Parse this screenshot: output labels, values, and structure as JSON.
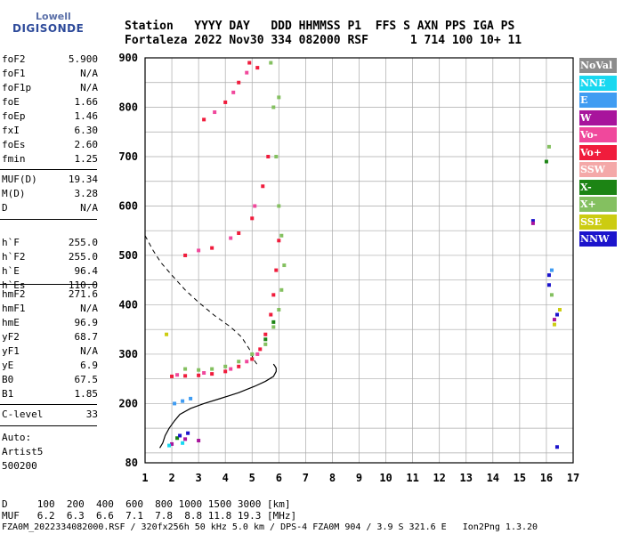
{
  "logo": {
    "line1": "Lowell",
    "line2": "DIGISONDE"
  },
  "header": {
    "line1": "Station   YYYY DAY   DDD HHMMSS P1  FFS S AXN PPS IGA PS",
    "line2": "Fortaleza 2022 Nov30 334 082000 RSF      1 714 100 10+ 11"
  },
  "params_group1": [
    {
      "label": "foF2",
      "value": "5.900"
    },
    {
      "label": "foF1",
      "value": "N/A"
    },
    {
      "label": "foF1p",
      "value": "N/A"
    },
    {
      "label": "foE",
      "value": "1.66"
    },
    {
      "label": "foEp",
      "value": "1.46"
    },
    {
      "label": "fxI",
      "value": "6.30"
    },
    {
      "label": "foEs",
      "value": "2.60"
    },
    {
      "label": "fmin",
      "value": "1.25"
    }
  ],
  "params_group2": [
    {
      "label": "MUF(D)",
      "value": "19.34"
    },
    {
      "label": "M(D)",
      "value": "3.28"
    },
    {
      "label": "D",
      "value": "N/A"
    }
  ],
  "params_group3": [
    {
      "label": "h`F",
      "value": "255.0"
    },
    {
      "label": "h`F2",
      "value": "255.0"
    },
    {
      "label": "h`E",
      "value": "96.4"
    },
    {
      "label": "h`Es",
      "value": "110.0"
    }
  ],
  "params_group4": [
    {
      "label": "hmF2",
      "value": "271.6"
    },
    {
      "label": "hmF1",
      "value": "N/A"
    },
    {
      "label": "hmE",
      "value": "96.9"
    },
    {
      "label": "yF2",
      "value": "68.7"
    },
    {
      "label": "yF1",
      "value": "N/A"
    },
    {
      "label": "yE",
      "value": "6.9"
    },
    {
      "label": "B0",
      "value": "67.5"
    },
    {
      "label": "B1",
      "value": "1.85"
    }
  ],
  "params_group5": [
    {
      "label": "C-level",
      "value": "33"
    }
  ],
  "autoscale": {
    "line1": "Auto:",
    "line2": "Artist5",
    "line3": "500200"
  },
  "footer": {
    "d_line": "D     100  200  400  600  800 1000 1500 3000 [km]",
    "muf_line": "MUF   6.2  6.3  6.6  7.1  7.8  8.8 11.8 19.3 [MHz]",
    "file_line": "FZA0M_2022334082000.RSF / 320fx256h 50 kHz 5.0 km / DPS-4 FZA0M 904 / 3.9 S 321.6 E   Ion2Png 1.3.20"
  },
  "legend": [
    {
      "label": "NoVal",
      "color": "#8c8c8c"
    },
    {
      "label": "NNE",
      "color": "#18d8f0"
    },
    {
      "label": "E",
      "color": "#3f9cf2"
    },
    {
      "label": "W",
      "color": "#a8149c"
    },
    {
      "label": "Vo-",
      "color": "#f0489c"
    },
    {
      "label": "Vo+",
      "color": "#f01c3c"
    },
    {
      "label": "SSW",
      "color": "#f4a8a8"
    },
    {
      "label": "X-",
      "color": "#1c8414"
    },
    {
      "label": "X+",
      "color": "#84c060"
    },
    {
      "label": "SSE",
      "color": "#cccc10"
    },
    {
      "label": "NNW",
      "color": "#1c14cc"
    }
  ],
  "chart_data": {
    "type": "scatter",
    "title": "",
    "xlabel": "",
    "ylabel": "",
    "xlim": [
      1,
      17
    ],
    "ylim": [
      80,
      900
    ],
    "x_ticks": [
      1,
      2,
      3,
      4,
      5,
      6,
      7,
      8,
      9,
      10,
      11,
      12,
      13,
      14,
      15,
      16,
      17
    ],
    "y_ticks": [
      80,
      200,
      300,
      400,
      500,
      600,
      700,
      800,
      900
    ],
    "grid": true,
    "series": [
      {
        "name": "Vo+",
        "color": "#f01c3c",
        "points": [
          [
            2.0,
            255
          ],
          [
            2.5,
            256
          ],
          [
            3.0,
            257
          ],
          [
            3.5,
            260
          ],
          [
            4.0,
            265
          ],
          [
            4.5,
            275
          ],
          [
            5.0,
            290
          ],
          [
            5.3,
            310
          ],
          [
            5.5,
            340
          ],
          [
            5.7,
            380
          ],
          [
            5.8,
            420
          ],
          [
            5.9,
            470
          ],
          [
            6.0,
            530
          ],
          [
            2.5,
            500
          ],
          [
            3.5,
            515
          ],
          [
            4.5,
            545
          ],
          [
            5.0,
            575
          ],
          [
            5.4,
            640
          ],
          [
            5.6,
            700
          ],
          [
            3.2,
            775
          ],
          [
            4.0,
            810
          ],
          [
            4.5,
            850
          ],
          [
            4.9,
            890
          ],
          [
            5.2,
            880
          ]
        ]
      },
      {
        "name": "Vo-",
        "color": "#f0489c",
        "points": [
          [
            2.2,
            258
          ],
          [
            3.2,
            262
          ],
          [
            4.2,
            270
          ],
          [
            4.8,
            285
          ],
          [
            5.2,
            300
          ],
          [
            3.0,
            510
          ],
          [
            4.2,
            535
          ],
          [
            5.1,
            600
          ],
          [
            3.6,
            790
          ],
          [
            4.3,
            830
          ],
          [
            4.8,
            870
          ]
        ]
      },
      {
        "name": "X+",
        "color": "#84c060",
        "points": [
          [
            2.5,
            270
          ],
          [
            3.0,
            268
          ],
          [
            3.5,
            270
          ],
          [
            4.0,
            275
          ],
          [
            4.5,
            285
          ],
          [
            5.0,
            300
          ],
          [
            5.5,
            320
          ],
          [
            5.8,
            355
          ],
          [
            6.0,
            390
          ],
          [
            6.1,
            430
          ],
          [
            6.2,
            480
          ],
          [
            6.1,
            540
          ],
          [
            6.0,
            600
          ],
          [
            5.9,
            700
          ],
          [
            5.8,
            800
          ],
          [
            5.7,
            890
          ],
          [
            6.0,
            820
          ],
          [
            16.1,
            720
          ],
          [
            16.2,
            420
          ]
        ]
      },
      {
        "name": "X-",
        "color": "#1c8414",
        "points": [
          [
            2.2,
            130
          ],
          [
            5.5,
            330
          ],
          [
            5.8,
            365
          ],
          [
            16.0,
            690
          ]
        ]
      },
      {
        "name": "NNW",
        "color": "#1c14cc",
        "points": [
          [
            2.3,
            135
          ],
          [
            2.6,
            140
          ],
          [
            15.5,
            570
          ],
          [
            16.1,
            460
          ],
          [
            16.1,
            440
          ],
          [
            16.4,
            380
          ],
          [
            16.4,
            112
          ]
        ]
      },
      {
        "name": "W",
        "color": "#a8149c",
        "points": [
          [
            2.0,
            118
          ],
          [
            2.5,
            128
          ],
          [
            3.0,
            125
          ],
          [
            15.5,
            565
          ],
          [
            16.3,
            370
          ]
        ]
      },
      {
        "name": "E",
        "color": "#3f9cf2",
        "points": [
          [
            2.1,
            200
          ],
          [
            2.4,
            205
          ],
          [
            2.7,
            210
          ],
          [
            16.2,
            470
          ]
        ]
      },
      {
        "name": "NNE",
        "color": "#18d8f0",
        "points": [
          [
            1.9,
            115
          ],
          [
            2.4,
            120
          ]
        ]
      },
      {
        "name": "SSE",
        "color": "#cccc10",
        "points": [
          [
            1.8,
            340
          ],
          [
            16.5,
            390
          ],
          [
            16.3,
            360
          ]
        ]
      }
    ],
    "profile_line": [
      [
        1.55,
        110
      ],
      [
        1.66,
        120
      ],
      [
        1.75,
        135
      ],
      [
        1.9,
        150
      ],
      [
        2.1,
        165
      ],
      [
        2.3,
        178
      ],
      [
        2.7,
        190
      ],
      [
        3.2,
        200
      ],
      [
        3.8,
        210
      ],
      [
        4.5,
        222
      ],
      [
        5.1,
        235
      ],
      [
        5.5,
        245
      ],
      [
        5.8,
        255
      ],
      [
        5.9,
        265
      ],
      [
        5.9,
        271.6
      ],
      [
        5.85,
        276
      ],
      [
        5.8,
        280
      ]
    ],
    "dashed_line": [
      [
        1.0,
        540
      ],
      [
        1.3,
        510
      ],
      [
        1.6,
        485
      ],
      [
        2.0,
        460
      ],
      [
        2.5,
        430
      ],
      [
        3.0,
        405
      ],
      [
        3.6,
        378
      ],
      [
        4.2,
        355
      ],
      [
        4.6,
        335
      ],
      [
        4.9,
        310
      ],
      [
        5.05,
        290
      ],
      [
        5.2,
        278
      ]
    ]
  }
}
